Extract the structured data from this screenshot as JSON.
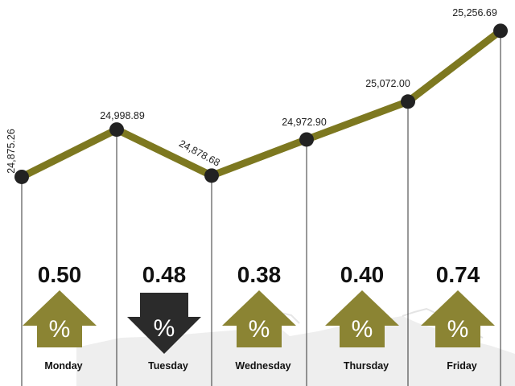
{
  "chart_data": {
    "type": "line",
    "categories": [
      "Monday",
      "Tuesday",
      "Wednesday",
      "Thursday",
      "Friday"
    ],
    "x": [
      1,
      2,
      3,
      4,
      5,
      6
    ],
    "values": [
      24875.26,
      24998.89,
      24878.68,
      24972.9,
      25072.0,
      25256.69
    ],
    "value_labels": [
      "24,875.26",
      "24,998.89",
      "24,878.68",
      "24,972.90",
      "25,072.00",
      "25,256.69"
    ],
    "daily_change": [
      {
        "day": "Monday",
        "value": "0.50",
        "direction": "up"
      },
      {
        "day": "Tuesday",
        "value": "0.48",
        "direction": "down"
      },
      {
        "day": "Wednesday",
        "value": "0.38",
        "direction": "up"
      },
      {
        "day": "Thursday",
        "value": "0.40",
        "direction": "up"
      },
      {
        "day": "Friday",
        "value": "0.74",
        "direction": "up"
      }
    ],
    "arrow_symbol": "%",
    "ylim": [
      24850,
      25270
    ],
    "grid": false,
    "colors": {
      "line": "#7d7820",
      "marker": "#222222",
      "up_arrow": "#8b8433",
      "down_arrow": "#2b2b2b",
      "guide": "#333333"
    }
  }
}
